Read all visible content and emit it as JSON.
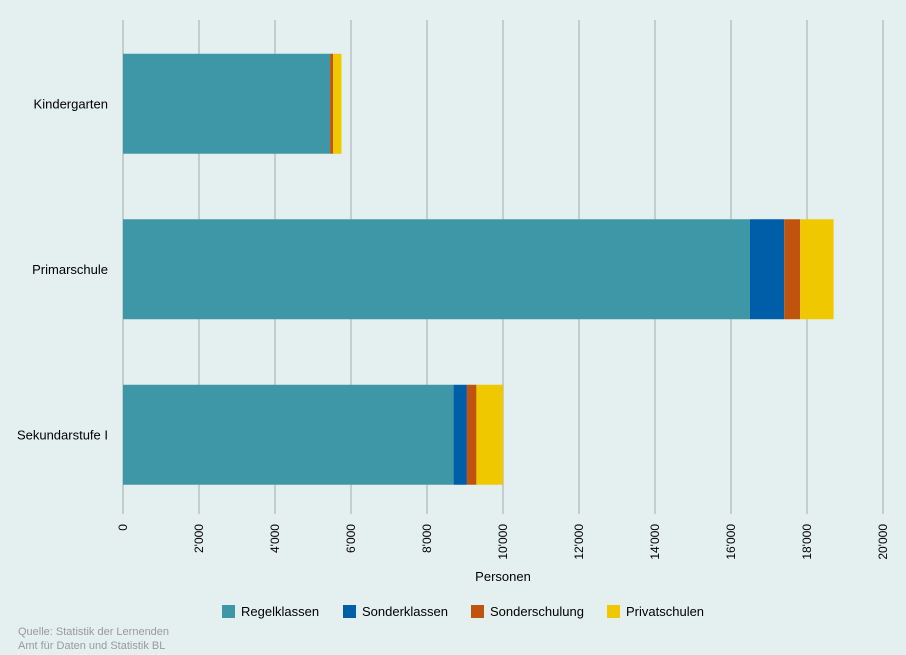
{
  "colors": {
    "background": "#e3f0ef",
    "gridline": "#a6aaa9",
    "Regelklassen": "#3e97a6",
    "Sonderklassen": "#005ea8",
    "Sonderschulung": "#c0540f",
    "Privatschulen": "#f0c800"
  },
  "chart_data": {
    "type": "bar",
    "orientation": "horizontal",
    "stacked": true,
    "categories": [
      "Kindergarten",
      "Primarschule",
      "Sekundarstufe I"
    ],
    "series": [
      {
        "name": "Regelklassen",
        "values": [
          5450,
          16500,
          8700
        ]
      },
      {
        "name": "Sonderklassen",
        "values": [
          0,
          900,
          350
        ]
      },
      {
        "name": "Sonderschulung",
        "values": [
          80,
          420,
          250
        ]
      },
      {
        "name": "Privatschulen",
        "values": [
          220,
          880,
          700
        ]
      }
    ],
    "xlabel": "Personen",
    "ylabel": "",
    "xlim": [
      0,
      20000
    ],
    "xticks": [
      0,
      2000,
      4000,
      6000,
      8000,
      10000,
      12000,
      14000,
      16000,
      18000,
      20000
    ],
    "xtick_labels": [
      "0",
      "2'000",
      "4'000",
      "6'000",
      "8'000",
      "10'000",
      "12'000",
      "14'000",
      "16'000",
      "18'000",
      "20'000"
    ],
    "grid": true,
    "legend_position": "bottom"
  },
  "source": {
    "line1": "Quelle: Statistik der Lernenden",
    "line2": "Amt für Daten und Statistik BL"
  }
}
